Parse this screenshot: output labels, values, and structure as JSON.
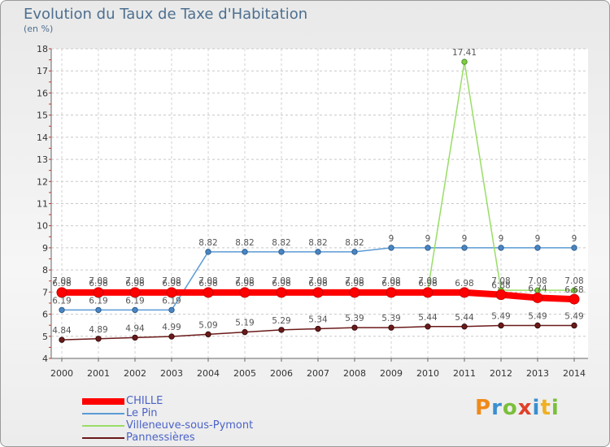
{
  "chart_data": {
    "type": "line",
    "title": "Evolution du Taux de Taxe d'Habitation",
    "ylabel": "(en %)",
    "xlabel": "",
    "ylim": [
      4,
      18
    ],
    "yticks": [
      "4",
      "5",
      "6",
      "7",
      "8",
      "9",
      "10",
      "11",
      "12",
      "13",
      "14",
      "15",
      "16",
      "17",
      "18"
    ],
    "x": [
      "2000",
      "2001",
      "2002",
      "2003",
      "2004",
      "2005",
      "2006",
      "2007",
      "2008",
      "2009",
      "2010",
      "2011",
      "2012",
      "2013",
      "2014"
    ],
    "series": [
      {
        "name": "CHILLE",
        "color": "#ff0000",
        "values": [
          6.98,
          6.98,
          6.98,
          6.98,
          6.98,
          6.98,
          6.98,
          6.98,
          6.98,
          6.98,
          6.98,
          6.98,
          6.88,
          6.74,
          6.68
        ],
        "labels": [
          "6.98",
          "6.98",
          "6.98",
          "6.98",
          "6.98",
          "6.98",
          "6.98",
          "6.98",
          "6.98",
          "6.98",
          "6.98",
          "6.98",
          "6.88",
          "6.74",
          "6.68"
        ]
      },
      {
        "name": "Le Pin",
        "color": "#5b9bd5",
        "values": [
          6.19,
          6.19,
          6.19,
          6.19,
          8.82,
          8.82,
          8.82,
          8.82,
          8.82,
          9,
          9,
          9,
          9,
          9,
          9
        ],
        "labels": [
          "6.19",
          "6.19",
          "6.19",
          "6.19",
          "8.82",
          "8.82",
          "8.82",
          "8.82",
          "8.82",
          "9",
          "9",
          "9",
          "9",
          "9",
          "9"
        ]
      },
      {
        "name": "Villeneuve-sous-Pymont",
        "color": "#99dd66",
        "values": [
          7.08,
          7.08,
          7.08,
          7.08,
          7.08,
          7.08,
          7.08,
          7.08,
          7.08,
          7.08,
          7.08,
          17.41,
          7.08,
          7.08,
          7.08
        ],
        "labels": [
          "7.08",
          "7.08",
          "7.08",
          "7.08",
          "7.08",
          "7.08",
          "7.08",
          "7.08",
          "7.08",
          "7.08",
          "7.08",
          "17.41",
          "7.08",
          "7.08",
          "7.08"
        ]
      },
      {
        "name": "Pannessières",
        "color": "#6b1a1a",
        "values": [
          4.84,
          4.89,
          4.94,
          4.99,
          5.09,
          5.19,
          5.29,
          5.34,
          5.39,
          5.39,
          5.44,
          5.44,
          5.49,
          5.49,
          5.49
        ],
        "labels": [
          "4.84",
          "4.89",
          "4.94",
          "4.99",
          "5.09",
          "5.19",
          "5.29",
          "5.34",
          "5.39",
          "5.39",
          "5.44",
          "5.44",
          "5.49",
          "5.49",
          "5.49"
        ]
      }
    ],
    "legend_position": "bottom-left"
  },
  "logo": [
    "P",
    "r",
    "o",
    "x",
    "i",
    "t",
    "i"
  ]
}
